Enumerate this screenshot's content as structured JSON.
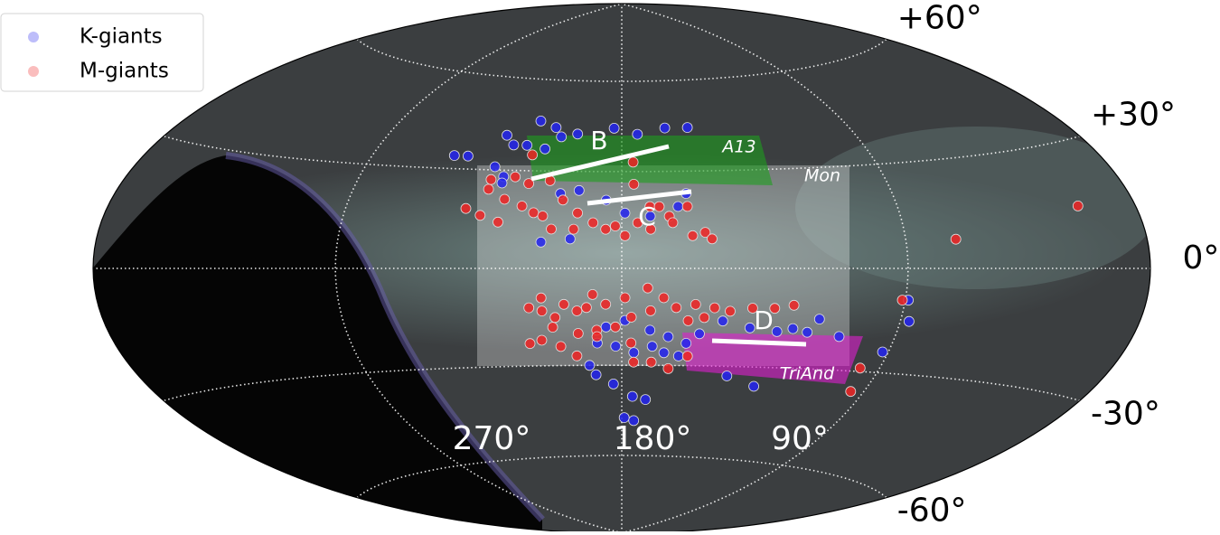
{
  "chart_data": {
    "type": "scatter",
    "projection": "hammer",
    "grid": true,
    "legend": "upper left",
    "xticks": [
      {
        "value": 270,
        "label": "270°"
      },
      {
        "value": 180,
        "label": "180°"
      },
      {
        "value": 90,
        "label": "90°"
      }
    ],
    "yticks": [
      {
        "value": 60,
        "label": "+60°"
      },
      {
        "value": 30,
        "label": "+30°"
      },
      {
        "value": 0,
        "label": "0°"
      },
      {
        "value": -30,
        "label": "-30°"
      },
      {
        "value": -60,
        "label": "-60°"
      }
    ],
    "annotations": [
      "B",
      "C",
      "D",
      "A13",
      "Mon",
      "TriAnd"
    ],
    "series": [
      {
        "name": "K-giants",
        "color": "#2424f0",
        "x": [
          213,
          206,
          224,
          220,
          215,
          208,
          203,
          197,
          183,
          174,
          163,
          154,
          240,
          235,
          224,
          220,
          220,
          200,
          194,
          185,
          179,
          171,
          196,
          205,
          162,
          159,
          188,
          182,
          176,
          170,
          166,
          161,
          159,
          155,
          148,
          139,
          130,
          125,
          120,
          117,
          109,
          92,
          87,
          89,
          189,
          191,
          183,
          176,
          171,
          179,
          175,
          143,
          132,
          179,
          185,
          171,
          165
        ],
        "y": [
          46,
          44,
          41,
          38,
          38,
          37,
          41,
          42,
          44,
          42,
          44,
          44,
          34,
          34,
          31,
          28,
          26,
          23,
          24,
          21,
          17,
          16,
          9,
          8,
          19,
          23,
          -23,
          -24,
          -26,
          -24,
          -26,
          -27,
          -23,
          -20,
          -16,
          -18,
          -19,
          -18,
          -19,
          -15,
          -20,
          -24,
          -15,
          -9,
          -33,
          -30,
          -36,
          -40,
          -41,
          -47,
          -48,
          -33,
          -36,
          -16,
          -18,
          -19,
          -21
        ]
      },
      {
        "name": "M-giants",
        "color": "#f02424",
        "x": [
          216,
          211,
          224,
          218,
          212,
          208,
          230,
          225,
          219,
          204,
          199,
          194,
          205,
          189,
          185,
          179,
          175,
          171,
          165,
          158,
          154,
          152,
          176,
          171,
          159,
          202,
          195,
          182,
          168,
          24,
          73,
          164,
          224,
          176,
          212,
          209,
          205,
          201,
          198,
          194,
          189,
          185,
          179,
          172,
          167,
          163,
          157,
          151,
          146,
          139,
          132,
          126,
          210,
          206,
          200,
          194,
          188,
          182,
          177,
          171,
          159,
          154,
          195,
          188,
          176,
          170,
          202,
          91,
          95,
          97,
          164,
          158,
          205,
          177,
          191
        ],
        "y": [
          28,
          26,
          24,
          21,
          19,
          17,
          18,
          16,
          14,
          27,
          21,
          17,
          16,
          14,
          12,
          10,
          14,
          12,
          16,
          10,
          11,
          9,
          26,
          19,
          19,
          12,
          12,
          13,
          19,
          15,
          8,
          14,
          27,
          33,
          35,
          -12,
          -13,
          -15,
          -11,
          -13,
          -8,
          -11,
          -9,
          -6,
          -9,
          -12,
          -11,
          -12,
          -13,
          -12,
          -12,
          -11,
          -23,
          -22,
          -24,
          -20,
          -19,
          -18,
          -15,
          -13,
          -16,
          -15,
          -27,
          -21,
          -29,
          -29,
          -18,
          -9,
          -36,
          -29,
          -31,
          -27,
          -9,
          -23,
          -12
        ]
      }
    ]
  }
}
